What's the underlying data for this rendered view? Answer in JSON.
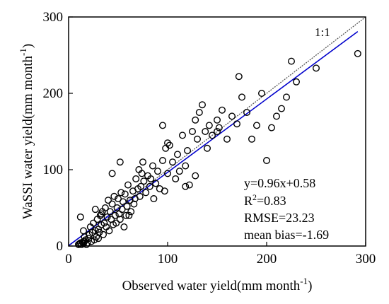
{
  "chart_data": {
    "type": "scatter",
    "xlabel": "Observed water yield(mm month",
    "xlabel_sup": "-1",
    "xlabel_end": ")",
    "ylabel": "WaSSI water yield(mm month",
    "ylabel_sup": "-1",
    "ylabel_end": ")",
    "xlim": [
      0,
      300
    ],
    "ylim": [
      0,
      300
    ],
    "xticks": [
      "0",
      "100",
      "200",
      "300"
    ],
    "yticks": [
      "0",
      "100",
      "200",
      "300"
    ],
    "one_to_one_label": "1:1",
    "stats": {
      "equation": "y=0.96x+0.58",
      "r2_prefix": "R",
      "r2_sup": "2",
      "r2_value": "=0.83",
      "rmse": "RMSE=23.23",
      "bias": "mean bias=-1.69"
    },
    "fit": {
      "slope": 0.96,
      "intercept": 0.58
    },
    "colors": {
      "fit_line": "#0000cc",
      "one_to_one": "#555555",
      "points": "#000000"
    },
    "points": [
      [
        10,
        2
      ],
      [
        11,
        3
      ],
      [
        12,
        4
      ],
      [
        13,
        2
      ],
      [
        14,
        5
      ],
      [
        15,
        3
      ],
      [
        16,
        6
      ],
      [
        18,
        2
      ],
      [
        17,
        8
      ],
      [
        19,
        4
      ],
      [
        12,
        38
      ],
      [
        15,
        20
      ],
      [
        16,
        12
      ],
      [
        20,
        10
      ],
      [
        21,
        15
      ],
      [
        22,
        25
      ],
      [
        23,
        6
      ],
      [
        24,
        18
      ],
      [
        25,
        30
      ],
      [
        26,
        8
      ],
      [
        27,
        20
      ],
      [
        28,
        12
      ],
      [
        29,
        35
      ],
      [
        30,
        22
      ],
      [
        31,
        18
      ],
      [
        32,
        40
      ],
      [
        33,
        28
      ],
      [
        34,
        45
      ],
      [
        35,
        15
      ],
      [
        36,
        30
      ],
      [
        37,
        50
      ],
      [
        38,
        25
      ],
      [
        39,
        38
      ],
      [
        40,
        60
      ],
      [
        41,
        20
      ],
      [
        42,
        45
      ],
      [
        43,
        35
      ],
      [
        44,
        55
      ],
      [
        45,
        28
      ],
      [
        46,
        65
      ],
      [
        47,
        40
      ],
      [
        48,
        30
      ],
      [
        49,
        50
      ],
      [
        50,
        62
      ],
      [
        51,
        42
      ],
      [
        52,
        35
      ],
      [
        53,
        70
      ],
      [
        54,
        48
      ],
      [
        55,
        58
      ],
      [
        56,
        25
      ],
      [
        57,
        68
      ],
      [
        58,
        40
      ],
      [
        59,
        52
      ],
      [
        60,
        80
      ],
      [
        62,
        60
      ],
      [
        63,
        45
      ],
      [
        65,
        72
      ],
      [
        66,
        55
      ],
      [
        68,
        88
      ],
      [
        70,
        75
      ],
      [
        71,
        100
      ],
      [
        72,
        65
      ],
      [
        74,
        95
      ],
      [
        75,
        110
      ],
      [
        76,
        85
      ],
      [
        78,
        70
      ],
      [
        80,
        92
      ],
      [
        82,
        78
      ],
      [
        85,
        105
      ],
      [
        88,
        82
      ],
      [
        90,
        98
      ],
      [
        92,
        75
      ],
      [
        95,
        112
      ],
      [
        98,
        128
      ],
      [
        100,
        95
      ],
      [
        102,
        132
      ],
      [
        105,
        110
      ],
      [
        108,
        88
      ],
      [
        110,
        120
      ],
      [
        112,
        98
      ],
      [
        115,
        145
      ],
      [
        118,
        105
      ],
      [
        120,
        125
      ],
      [
        122,
        80
      ],
      [
        125,
        150
      ],
      [
        128,
        165
      ],
      [
        130,
        140
      ],
      [
        132,
        175
      ],
      [
        135,
        185
      ],
      [
        138,
        150
      ],
      [
        140,
        128
      ],
      [
        142,
        158
      ],
      [
        145,
        145
      ],
      [
        150,
        165
      ],
      [
        152,
        155
      ],
      [
        155,
        178
      ],
      [
        160,
        140
      ],
      [
        165,
        170
      ],
      [
        170,
        160
      ],
      [
        175,
        195
      ],
      [
        180,
        175
      ],
      [
        185,
        140
      ],
      [
        190,
        158
      ],
      [
        195,
        200
      ],
      [
        200,
        112
      ],
      [
        205,
        155
      ],
      [
        210,
        170
      ],
      [
        215,
        180
      ],
      [
        220,
        195
      ],
      [
        225,
        242
      ],
      [
        230,
        215
      ],
      [
        250,
        233
      ],
      [
        292,
        252
      ],
      [
        95,
        158
      ],
      [
        100,
        135
      ],
      [
        150,
        150
      ],
      [
        172,
        222
      ],
      [
        52,
        110
      ],
      [
        44,
        95
      ],
      [
        30,
        10
      ],
      [
        33,
        42
      ],
      [
        27,
        48
      ],
      [
        61,
        40
      ],
      [
        67,
        62
      ],
      [
        73,
        78
      ],
      [
        83,
        88
      ],
      [
        86,
        62
      ],
      [
        97,
        72
      ],
      [
        118,
        78
      ],
      [
        128,
        92
      ]
    ]
  }
}
